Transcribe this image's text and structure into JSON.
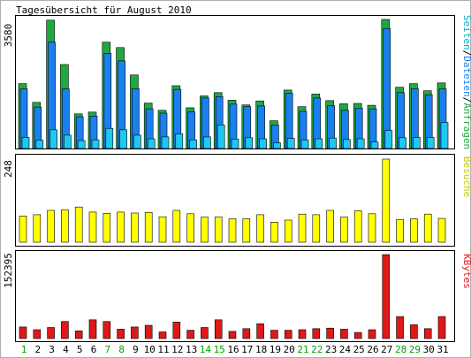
{
  "title": "Tagesübersicht für August 2010",
  "colors": {
    "background": "#ffffff",
    "panel_border": "#000000",
    "weekday_label": "#000000",
    "weekend_label": "#00a000",
    "hits": "#20a840",
    "files": "#1a80f0",
    "pages": "#20c8f0",
    "visits": "#ffff00",
    "kbytes": "#e01818"
  },
  "chart_data": [
    {
      "type": "bar",
      "panel": "top",
      "right_label": [
        "Seiten",
        "/",
        "Dateien",
        "/",
        "Anfragen"
      ],
      "right_label_colors": [
        "#00b0c8",
        "#000000",
        "#1a80f0",
        "#000000",
        "#20a840"
      ],
      "ymax_label": "3580",
      "ylim": [
        0,
        3580
      ],
      "categories": [
        "1",
        "2",
        "3",
        "4",
        "5",
        "6",
        "7",
        "8",
        "9",
        "10",
        "11",
        "12",
        "13",
        "14",
        "15",
        "16",
        "17",
        "18",
        "19",
        "20",
        "21",
        "22",
        "23",
        "24",
        "25",
        "26",
        "27",
        "28",
        "29",
        "30",
        "31"
      ],
      "weekend_days": [
        "1",
        "7",
        "8",
        "14",
        "15",
        "21",
        "22",
        "28",
        "29"
      ],
      "series": [
        {
          "key": "hits",
          "values": [
            1800,
            1280,
            3560,
            2330,
            960,
            1010,
            2950,
            2800,
            2040,
            1260,
            1060,
            1740,
            1130,
            1460,
            1550,
            1340,
            1210,
            1320,
            770,
            1620,
            1160,
            1510,
            1330,
            1240,
            1250,
            1200,
            3580,
            1700,
            1800,
            1600,
            1820
          ]
        },
        {
          "key": "files",
          "values": [
            1650,
            1150,
            2950,
            1650,
            880,
            900,
            2640,
            2430,
            1660,
            1100,
            980,
            1640,
            1020,
            1400,
            1440,
            1230,
            1160,
            1180,
            650,
            1530,
            1030,
            1400,
            1190,
            1060,
            1120,
            1100,
            3330,
            1550,
            1660,
            1490,
            1650
          ]
        },
        {
          "key": "pages",
          "values": [
            310,
            230,
            520,
            370,
            220,
            240,
            560,
            520,
            370,
            270,
            320,
            410,
            240,
            320,
            650,
            260,
            300,
            270,
            160,
            280,
            240,
            270,
            290,
            250,
            270,
            180,
            500,
            300,
            310,
            310,
            720
          ]
        }
      ]
    },
    {
      "type": "bar",
      "panel": "middle",
      "right_label": [
        "Besuche"
      ],
      "right_label_colors": [
        "#c8c800"
      ],
      "ymax_label": "248",
      "ylim": [
        0,
        248
      ],
      "categories": [
        "1",
        "2",
        "3",
        "4",
        "5",
        "6",
        "7",
        "8",
        "9",
        "10",
        "11",
        "12",
        "13",
        "14",
        "15",
        "16",
        "17",
        "18",
        "19",
        "20",
        "21",
        "22",
        "23",
        "24",
        "25",
        "26",
        "27",
        "28",
        "29",
        "30",
        "31"
      ],
      "series": [
        {
          "key": "visits",
          "values": [
            78,
            82,
            95,
            97,
            105,
            90,
            86,
            90,
            87,
            89,
            76,
            95,
            85,
            75,
            75,
            70,
            70,
            82,
            60,
            66,
            84,
            82,
            95,
            75,
            94,
            85,
            248,
            68,
            70,
            84,
            71
          ]
        }
      ]
    },
    {
      "type": "bar",
      "panel": "bottom",
      "right_label": [
        "KBytes"
      ],
      "right_label_colors": [
        "#e01818"
      ],
      "ymax_label": "152395",
      "ylim": [
        0,
        152395
      ],
      "categories": [
        "1",
        "2",
        "3",
        "4",
        "5",
        "6",
        "7",
        "8",
        "9",
        "10",
        "11",
        "12",
        "13",
        "14",
        "15",
        "16",
        "17",
        "18",
        "19",
        "20",
        "21",
        "22",
        "23",
        "24",
        "25",
        "26",
        "27",
        "28",
        "29",
        "30",
        "31"
      ],
      "series": [
        {
          "key": "kbytes",
          "values": [
            21000,
            16000,
            20000,
            31000,
            14000,
            34000,
            31000,
            17000,
            21000,
            24000,
            12000,
            30000,
            15000,
            20000,
            34000,
            13000,
            18000,
            27000,
            15000,
            15000,
            16000,
            18000,
            19000,
            17000,
            11000,
            16000,
            152395,
            40000,
            25000,
            18000,
            40000
          ]
        }
      ]
    }
  ]
}
